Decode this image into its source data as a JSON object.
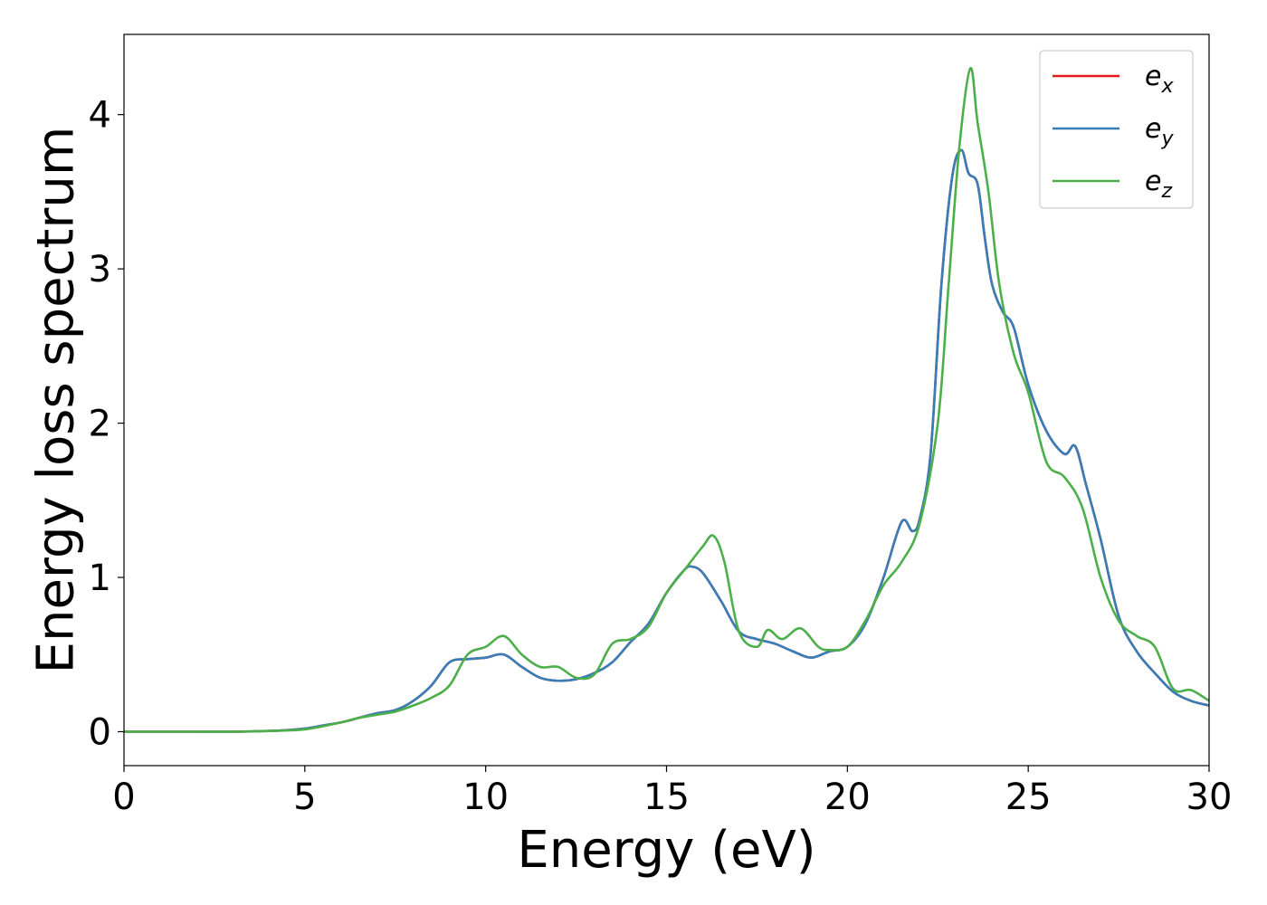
{
  "chart_data": {
    "type": "line",
    "title": "",
    "xlabel": "Energy (eV)",
    "ylabel": "Energy loss spectrum",
    "xlim": [
      0,
      30
    ],
    "ylim": [
      -0.22,
      4.52
    ],
    "xticks": [
      0,
      5,
      10,
      15,
      20,
      25,
      30
    ],
    "yticks": [
      0,
      1,
      2,
      3,
      4
    ],
    "xtick_labels": [
      "0",
      "5",
      "10",
      "15",
      "20",
      "25",
      "30"
    ],
    "ytick_labels": [
      "0",
      "1",
      "2",
      "3",
      "4"
    ],
    "grid": false,
    "legend_position": "top-right",
    "series": [
      {
        "name": "e_x",
        "label_base": "e",
        "label_sub": "x",
        "color": "#e41a1c",
        "x": [
          0,
          1,
          2,
          3,
          4,
          4.5,
          5,
          5.5,
          6,
          6.5,
          7,
          7.5,
          8,
          8.5,
          9,
          9.5,
          10,
          10.5,
          11,
          11.5,
          12,
          12.5,
          13,
          13.5,
          14,
          14.5,
          15,
          15.5,
          15.7,
          16,
          16.5,
          17,
          17.5,
          18,
          18.5,
          19,
          19.5,
          20,
          20.5,
          21,
          21.5,
          21.8,
          22,
          22.3,
          22.6,
          22.9,
          23.15,
          23.35,
          23.6,
          23.8,
          24,
          24.3,
          24.6,
          25,
          25.5,
          26,
          26.3,
          26.6,
          27,
          27.5,
          28,
          28.5,
          29,
          29.5,
          30
        ],
        "y": [
          0,
          0,
          0,
          0,
          0.005,
          0.01,
          0.02,
          0.04,
          0.06,
          0.09,
          0.12,
          0.14,
          0.2,
          0.3,
          0.45,
          0.47,
          0.48,
          0.5,
          0.42,
          0.35,
          0.33,
          0.34,
          0.38,
          0.45,
          0.58,
          0.7,
          0.9,
          1.05,
          1.07,
          1.03,
          0.85,
          0.65,
          0.6,
          0.57,
          0.52,
          0.48,
          0.52,
          0.55,
          0.7,
          1.0,
          1.36,
          1.3,
          1.38,
          1.8,
          2.9,
          3.6,
          3.77,
          3.62,
          3.55,
          3.2,
          2.9,
          2.72,
          2.62,
          2.25,
          1.95,
          1.8,
          1.85,
          1.6,
          1.25,
          0.75,
          0.52,
          0.38,
          0.26,
          0.2,
          0.17
        ]
      },
      {
        "name": "e_y",
        "label_base": "e",
        "label_sub": "y",
        "color": "#377eb8",
        "x": [
          0,
          1,
          2,
          3,
          4,
          4.5,
          5,
          5.5,
          6,
          6.5,
          7,
          7.5,
          8,
          8.5,
          9,
          9.5,
          10,
          10.5,
          11,
          11.5,
          12,
          12.5,
          13,
          13.5,
          14,
          14.5,
          15,
          15.5,
          15.7,
          16,
          16.5,
          17,
          17.5,
          18,
          18.5,
          19,
          19.5,
          20,
          20.5,
          21,
          21.5,
          21.8,
          22,
          22.3,
          22.6,
          22.9,
          23.15,
          23.35,
          23.6,
          23.8,
          24,
          24.3,
          24.6,
          25,
          25.5,
          26,
          26.3,
          26.6,
          27,
          27.5,
          28,
          28.5,
          29,
          29.5,
          30
        ],
        "y": [
          0,
          0,
          0,
          0,
          0.005,
          0.01,
          0.02,
          0.04,
          0.06,
          0.09,
          0.12,
          0.14,
          0.2,
          0.3,
          0.45,
          0.47,
          0.48,
          0.5,
          0.42,
          0.35,
          0.33,
          0.34,
          0.38,
          0.45,
          0.58,
          0.7,
          0.9,
          1.05,
          1.07,
          1.03,
          0.85,
          0.65,
          0.6,
          0.57,
          0.52,
          0.48,
          0.52,
          0.55,
          0.7,
          1.0,
          1.36,
          1.3,
          1.38,
          1.8,
          2.9,
          3.6,
          3.77,
          3.62,
          3.55,
          3.2,
          2.9,
          2.72,
          2.62,
          2.25,
          1.95,
          1.8,
          1.85,
          1.6,
          1.25,
          0.75,
          0.52,
          0.38,
          0.26,
          0.2,
          0.17
        ]
      },
      {
        "name": "e_z",
        "label_base": "e",
        "label_sub": "z",
        "color": "#4daf4a",
        "x": [
          0,
          1,
          2,
          3,
          4,
          4.5,
          5,
          5.5,
          6,
          6.5,
          7,
          7.5,
          8,
          8.5,
          9,
          9.5,
          10,
          10.5,
          11,
          11.5,
          12,
          12.5,
          13,
          13.5,
          14,
          14.5,
          15,
          15.5,
          16,
          16.3,
          16.6,
          17,
          17.5,
          17.8,
          18.2,
          18.7,
          19.2,
          19.5,
          20,
          20.5,
          21,
          21.5,
          22,
          22.5,
          22.8,
          23.1,
          23.4,
          23.6,
          23.9,
          24.2,
          24.6,
          25,
          25.5,
          26,
          26.5,
          27,
          27.5,
          28,
          28.5,
          29,
          29.5,
          30
        ],
        "y": [
          0,
          0,
          0,
          0,
          0.005,
          0.008,
          0.015,
          0.035,
          0.06,
          0.09,
          0.11,
          0.13,
          0.17,
          0.22,
          0.3,
          0.5,
          0.55,
          0.62,
          0.5,
          0.42,
          0.42,
          0.35,
          0.37,
          0.57,
          0.6,
          0.68,
          0.9,
          1.05,
          1.2,
          1.27,
          1.1,
          0.65,
          0.55,
          0.66,
          0.6,
          0.67,
          0.55,
          0.53,
          0.55,
          0.72,
          0.95,
          1.1,
          1.35,
          2.0,
          2.9,
          3.8,
          4.3,
          3.95,
          3.5,
          2.9,
          2.45,
          2.2,
          1.75,
          1.65,
          1.45,
          1.0,
          0.72,
          0.62,
          0.55,
          0.28,
          0.27,
          0.2
        ]
      }
    ]
  }
}
